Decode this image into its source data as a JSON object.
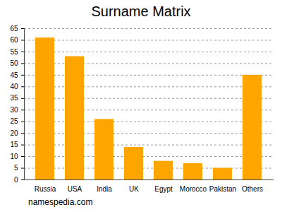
{
  "chart_data": {
    "type": "bar",
    "title": "Surname Matrix",
    "categories": [
      "Russia",
      "USA",
      "India",
      "UK",
      "Egypt",
      "Morocco",
      "Pakistan",
      "Others"
    ],
    "values": [
      61,
      53,
      26,
      14,
      8,
      7,
      5,
      45
    ],
    "color": "#ffa500",
    "ylim": [
      0,
      65
    ],
    "yticks": [
      0,
      5,
      10,
      15,
      20,
      25,
      30,
      35,
      40,
      45,
      50,
      55,
      60,
      65
    ],
    "grid": true,
    "caption": "namespedia.com"
  }
}
